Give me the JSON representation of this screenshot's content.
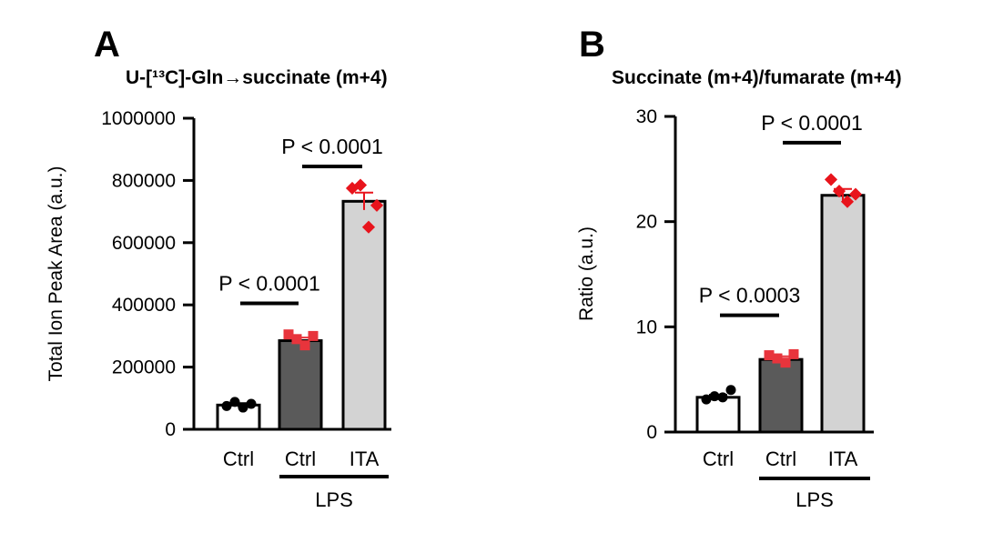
{
  "chart_data": [
    {
      "type": "bar",
      "panel": "A",
      "title": "U-[¹³C]-Gln→succinate (m+4)",
      "xlabel": "",
      "ylabel": "Total Ion Peak Area (a.u.)",
      "ylim": [
        0,
        1000000
      ],
      "yticks": [
        "0",
        "200000",
        "400000",
        "600000",
        "800000",
        "1000000"
      ],
      "ytick_values": [
        0,
        200000,
        400000,
        600000,
        800000,
        1000000
      ],
      "categories": [
        "Ctrl",
        "Ctrl",
        "ITA"
      ],
      "group_label": "LPS",
      "values": [
        78000,
        285000,
        733000
      ],
      "errors": [
        6000,
        10000,
        28000
      ],
      "bar_colors": [
        "#ffffff",
        "#5a5a5a",
        "#d3d3d3"
      ],
      "point_colors": [
        "#000000",
        "#e8343c",
        "#e8141c"
      ],
      "points": [
        [
          75000,
          88000,
          70000,
          82000
        ],
        [
          305000,
          290000,
          270000,
          300000
        ],
        [
          775000,
          785000,
          650000,
          720000
        ]
      ],
      "comparisons": [
        {
          "label": "P < 0.0001",
          "from": 0,
          "to": 1,
          "y": 405000
        },
        {
          "label": "P < 0.0001",
          "from": 1,
          "to": 2,
          "y": 845000
        }
      ]
    },
    {
      "type": "bar",
      "panel": "B",
      "title": "Succinate (m+4)/fumarate (m+4)",
      "xlabel": "",
      "ylabel": "Ratio (a.u.)",
      "ylim": [
        0,
        30
      ],
      "yticks": [
        "0",
        "10",
        "20",
        "30"
      ],
      "ytick_values": [
        0,
        10,
        20,
        30
      ],
      "categories": [
        "Ctrl",
        "Ctrl",
        "ITA"
      ],
      "group_label": "LPS",
      "values": [
        3.3,
        6.9,
        22.5
      ],
      "errors": [
        0.25,
        0.3,
        0.6
      ],
      "bar_colors": [
        "#ffffff",
        "#5a5a5a",
        "#d3d3d3"
      ],
      "point_colors": [
        "#000000",
        "#e8343c",
        "#e8141c"
      ],
      "points": [
        [
          3.1,
          3.4,
          3.3,
          4.0
        ],
        [
          7.3,
          7.0,
          6.6,
          7.4
        ],
        [
          24.0,
          22.9,
          21.9,
          22.6
        ]
      ],
      "comparisons": [
        {
          "label": "P < 0.0003",
          "from": 0,
          "to": 1,
          "y": 11.1
        },
        {
          "label": "P < 0.0001",
          "from": 1,
          "to": 2,
          "y": 27.5
        }
      ]
    }
  ]
}
